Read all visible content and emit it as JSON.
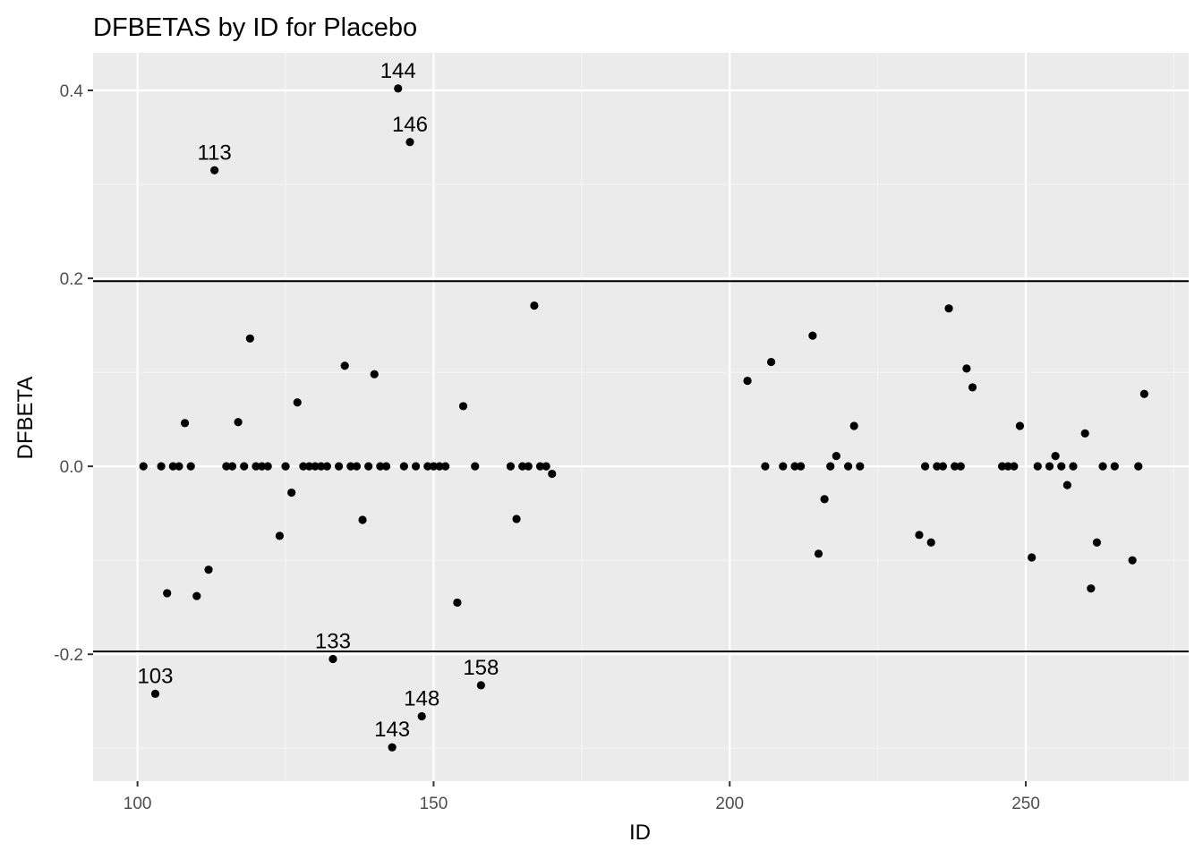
{
  "chart_data": {
    "type": "scatter",
    "title": "DFBETAS by ID for Placebo",
    "xlabel": "ID",
    "ylabel": "DFBETA",
    "xlim": [
      92.5,
      277.5
    ],
    "ylim": [
      -0.335,
      0.44
    ],
    "x_ticks": [
      100,
      150,
      200,
      250
    ],
    "x_tick_labels": [
      "100",
      "150",
      "200",
      "250"
    ],
    "y_ticks": [
      -0.2,
      0.0,
      0.2,
      0.4
    ],
    "y_tick_labels": [
      "-0.2",
      "0.0",
      "0.2",
      "0.4"
    ],
    "grid": true,
    "panel_background": "#ebebeb",
    "point_color": "#000000",
    "reference_lines": [
      0.197,
      -0.197
    ],
    "points": [
      {
        "x": 101,
        "y": 0.0
      },
      {
        "x": 103,
        "y": -0.242,
        "label": "103"
      },
      {
        "x": 104,
        "y": 0.0
      },
      {
        "x": 105,
        "y": -0.135
      },
      {
        "x": 106,
        "y": 0.0
      },
      {
        "x": 107,
        "y": 0.0
      },
      {
        "x": 108,
        "y": 0.046
      },
      {
        "x": 109,
        "y": 0.0
      },
      {
        "x": 110,
        "y": -0.138
      },
      {
        "x": 112,
        "y": -0.11
      },
      {
        "x": 113,
        "y": 0.315,
        "label": "113"
      },
      {
        "x": 115,
        "y": 0.0
      },
      {
        "x": 116,
        "y": 0.0
      },
      {
        "x": 117,
        "y": 0.047
      },
      {
        "x": 118,
        "y": 0.0
      },
      {
        "x": 119,
        "y": 0.136
      },
      {
        "x": 120,
        "y": 0.0
      },
      {
        "x": 121,
        "y": 0.0
      },
      {
        "x": 122,
        "y": 0.0
      },
      {
        "x": 124,
        "y": -0.074
      },
      {
        "x": 125,
        "y": 0.0
      },
      {
        "x": 126,
        "y": -0.028
      },
      {
        "x": 127,
        "y": 0.068
      },
      {
        "x": 128,
        "y": 0.0
      },
      {
        "x": 129,
        "y": 0.0
      },
      {
        "x": 130,
        "y": 0.0
      },
      {
        "x": 131,
        "y": 0.0
      },
      {
        "x": 132,
        "y": 0.0
      },
      {
        "x": 133,
        "y": -0.205,
        "label": "133"
      },
      {
        "x": 134,
        "y": 0.0
      },
      {
        "x": 135,
        "y": 0.107
      },
      {
        "x": 136,
        "y": 0.0
      },
      {
        "x": 137,
        "y": 0.0
      },
      {
        "x": 138,
        "y": -0.057
      },
      {
        "x": 139,
        "y": 0.0
      },
      {
        "x": 140,
        "y": 0.098
      },
      {
        "x": 141,
        "y": 0.0
      },
      {
        "x": 142,
        "y": 0.0
      },
      {
        "x": 143,
        "y": -0.299,
        "label": "143"
      },
      {
        "x": 144,
        "y": 0.402,
        "label": "144"
      },
      {
        "x": 145,
        "y": 0.0
      },
      {
        "x": 146,
        "y": 0.345,
        "label": "146"
      },
      {
        "x": 147,
        "y": 0.0
      },
      {
        "x": 148,
        "y": -0.266,
        "label": "148"
      },
      {
        "x": 149,
        "y": 0.0
      },
      {
        "x": 150,
        "y": 0.0
      },
      {
        "x": 151,
        "y": 0.0
      },
      {
        "x": 152,
        "y": 0.0
      },
      {
        "x": 154,
        "y": -0.145
      },
      {
        "x": 155,
        "y": 0.064
      },
      {
        "x": 157,
        "y": 0.0
      },
      {
        "x": 158,
        "y": -0.233,
        "label": "158"
      },
      {
        "x": 163,
        "y": 0.0
      },
      {
        "x": 164,
        "y": -0.056
      },
      {
        "x": 165,
        "y": 0.0
      },
      {
        "x": 166,
        "y": 0.0
      },
      {
        "x": 167,
        "y": 0.171
      },
      {
        "x": 168,
        "y": 0.0
      },
      {
        "x": 169,
        "y": 0.0
      },
      {
        "x": 170,
        "y": -0.008
      },
      {
        "x": 203,
        "y": 0.091
      },
      {
        "x": 206,
        "y": 0.0
      },
      {
        "x": 207,
        "y": 0.111
      },
      {
        "x": 209,
        "y": 0.0
      },
      {
        "x": 211,
        "y": 0.0
      },
      {
        "x": 212,
        "y": 0.0
      },
      {
        "x": 214,
        "y": 0.139
      },
      {
        "x": 215,
        "y": -0.093
      },
      {
        "x": 216,
        "y": -0.035
      },
      {
        "x": 217,
        "y": 0.0
      },
      {
        "x": 218,
        "y": 0.011
      },
      {
        "x": 220,
        "y": 0.0
      },
      {
        "x": 221,
        "y": 0.043
      },
      {
        "x": 222,
        "y": 0.0
      },
      {
        "x": 232,
        "y": -0.073
      },
      {
        "x": 233,
        "y": 0.0
      },
      {
        "x": 234,
        "y": -0.081
      },
      {
        "x": 235,
        "y": 0.0
      },
      {
        "x": 236,
        "y": 0.0
      },
      {
        "x": 237,
        "y": 0.168
      },
      {
        "x": 238,
        "y": 0.0
      },
      {
        "x": 239,
        "y": 0.0
      },
      {
        "x": 240,
        "y": 0.104
      },
      {
        "x": 241,
        "y": 0.084
      },
      {
        "x": 246,
        "y": 0.0
      },
      {
        "x": 247,
        "y": 0.0
      },
      {
        "x": 248,
        "y": 0.0
      },
      {
        "x": 249,
        "y": 0.043
      },
      {
        "x": 251,
        "y": -0.097
      },
      {
        "x": 252,
        "y": 0.0
      },
      {
        "x": 254,
        "y": 0.0
      },
      {
        "x": 255,
        "y": 0.011
      },
      {
        "x": 256,
        "y": 0.0
      },
      {
        "x": 257,
        "y": -0.02
      },
      {
        "x": 258,
        "y": 0.0
      },
      {
        "x": 260,
        "y": 0.035
      },
      {
        "x": 261,
        "y": -0.13
      },
      {
        "x": 262,
        "y": -0.081
      },
      {
        "x": 263,
        "y": 0.0
      },
      {
        "x": 265,
        "y": 0.0
      },
      {
        "x": 268,
        "y": -0.1
      },
      {
        "x": 269,
        "y": 0.0
      },
      {
        "x": 270,
        "y": 0.077
      }
    ]
  }
}
